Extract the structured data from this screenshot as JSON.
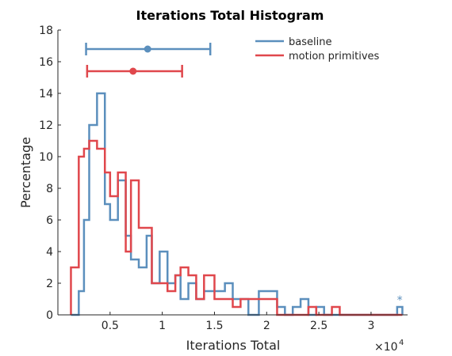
{
  "chart_data": {
    "type": "histogram",
    "title": "Iterations Total Histogram",
    "xlabel": "Iterations Total",
    "ylabel": "Percentage",
    "x_multiplier_label": "×10",
    "x_multiplier_exponent": "4",
    "xlim": [
      0,
      3.35
    ],
    "ylim": [
      0,
      18
    ],
    "xticks": [
      0.5,
      1,
      1.5,
      2,
      2.5,
      3
    ],
    "xtick_labels": [
      "0.5",
      "1",
      "1.5",
      "2",
      "2.5",
      "3"
    ],
    "yticks": [
      0,
      2,
      4,
      6,
      8,
      10,
      12,
      14,
      16,
      18
    ],
    "ytick_labels": [
      "0",
      "2",
      "4",
      "6",
      "8",
      "10",
      "12",
      "14",
      "16",
      "18"
    ],
    "grid": false,
    "legend_position": "top-right",
    "series": [
      {
        "name": "baseline",
        "color": "#5b8fbd",
        "edges": [
          0.125,
          0.2,
          0.25,
          0.3,
          0.375,
          0.45,
          0.5,
          0.575,
          0.65,
          0.7,
          0.775,
          0.85,
          0.9,
          0.975,
          1.05,
          1.125,
          1.175,
          1.25,
          1.325,
          1.4,
          1.5,
          1.6,
          1.675,
          1.75,
          1.825,
          1.925,
          2.025,
          2.1,
          2.175,
          2.25,
          2.325,
          2.4,
          2.475,
          2.55,
          2.625,
          2.7,
          2.775,
          2.85,
          2.925,
          3.25,
          3.3
        ],
        "values": [
          0,
          1.5,
          6,
          12,
          14,
          7,
          6,
          8.5,
          5,
          3.5,
          3,
          5,
          2,
          4,
          2,
          2.5,
          1,
          2,
          1,
          1.5,
          1.5,
          2,
          1,
          1,
          0,
          1.5,
          1.5,
          0.5,
          0,
          0.5,
          1,
          0,
          0.5,
          0,
          0,
          0,
          0,
          0,
          0,
          0.5
        ],
        "mean": 0.86,
        "ci": [
          0.27,
          1.46
        ],
        "annotation": "*"
      },
      {
        "name": "motion primitives",
        "color": "#e0474c",
        "edges": [
          0.125,
          0.2,
          0.25,
          0.3,
          0.375,
          0.45,
          0.5,
          0.575,
          0.65,
          0.7,
          0.775,
          0.85,
          0.9,
          0.975,
          1.05,
          1.125,
          1.175,
          1.25,
          1.325,
          1.4,
          1.5,
          1.6,
          1.675,
          1.75,
          1.825,
          1.925,
          2.025,
          2.1,
          2.175,
          2.25,
          2.325,
          2.4,
          2.475,
          2.55,
          2.625,
          2.7,
          2.775,
          2.85,
          2.925,
          3.25,
          3.3
        ],
        "values": [
          3,
          10,
          10.5,
          11,
          10.5,
          9,
          7.5,
          9,
          4,
          8.5,
          5.5,
          5.5,
          2,
          2,
          1.5,
          2.5,
          3,
          2.5,
          1,
          2.5,
          1,
          1,
          0.5,
          1,
          1,
          1,
          1,
          0,
          0,
          0,
          0,
          0.5,
          0,
          0,
          0.5,
          0,
          0,
          0,
          0,
          0
        ],
        "mean": 0.72,
        "ci": [
          0.28,
          1.19
        ]
      }
    ]
  }
}
